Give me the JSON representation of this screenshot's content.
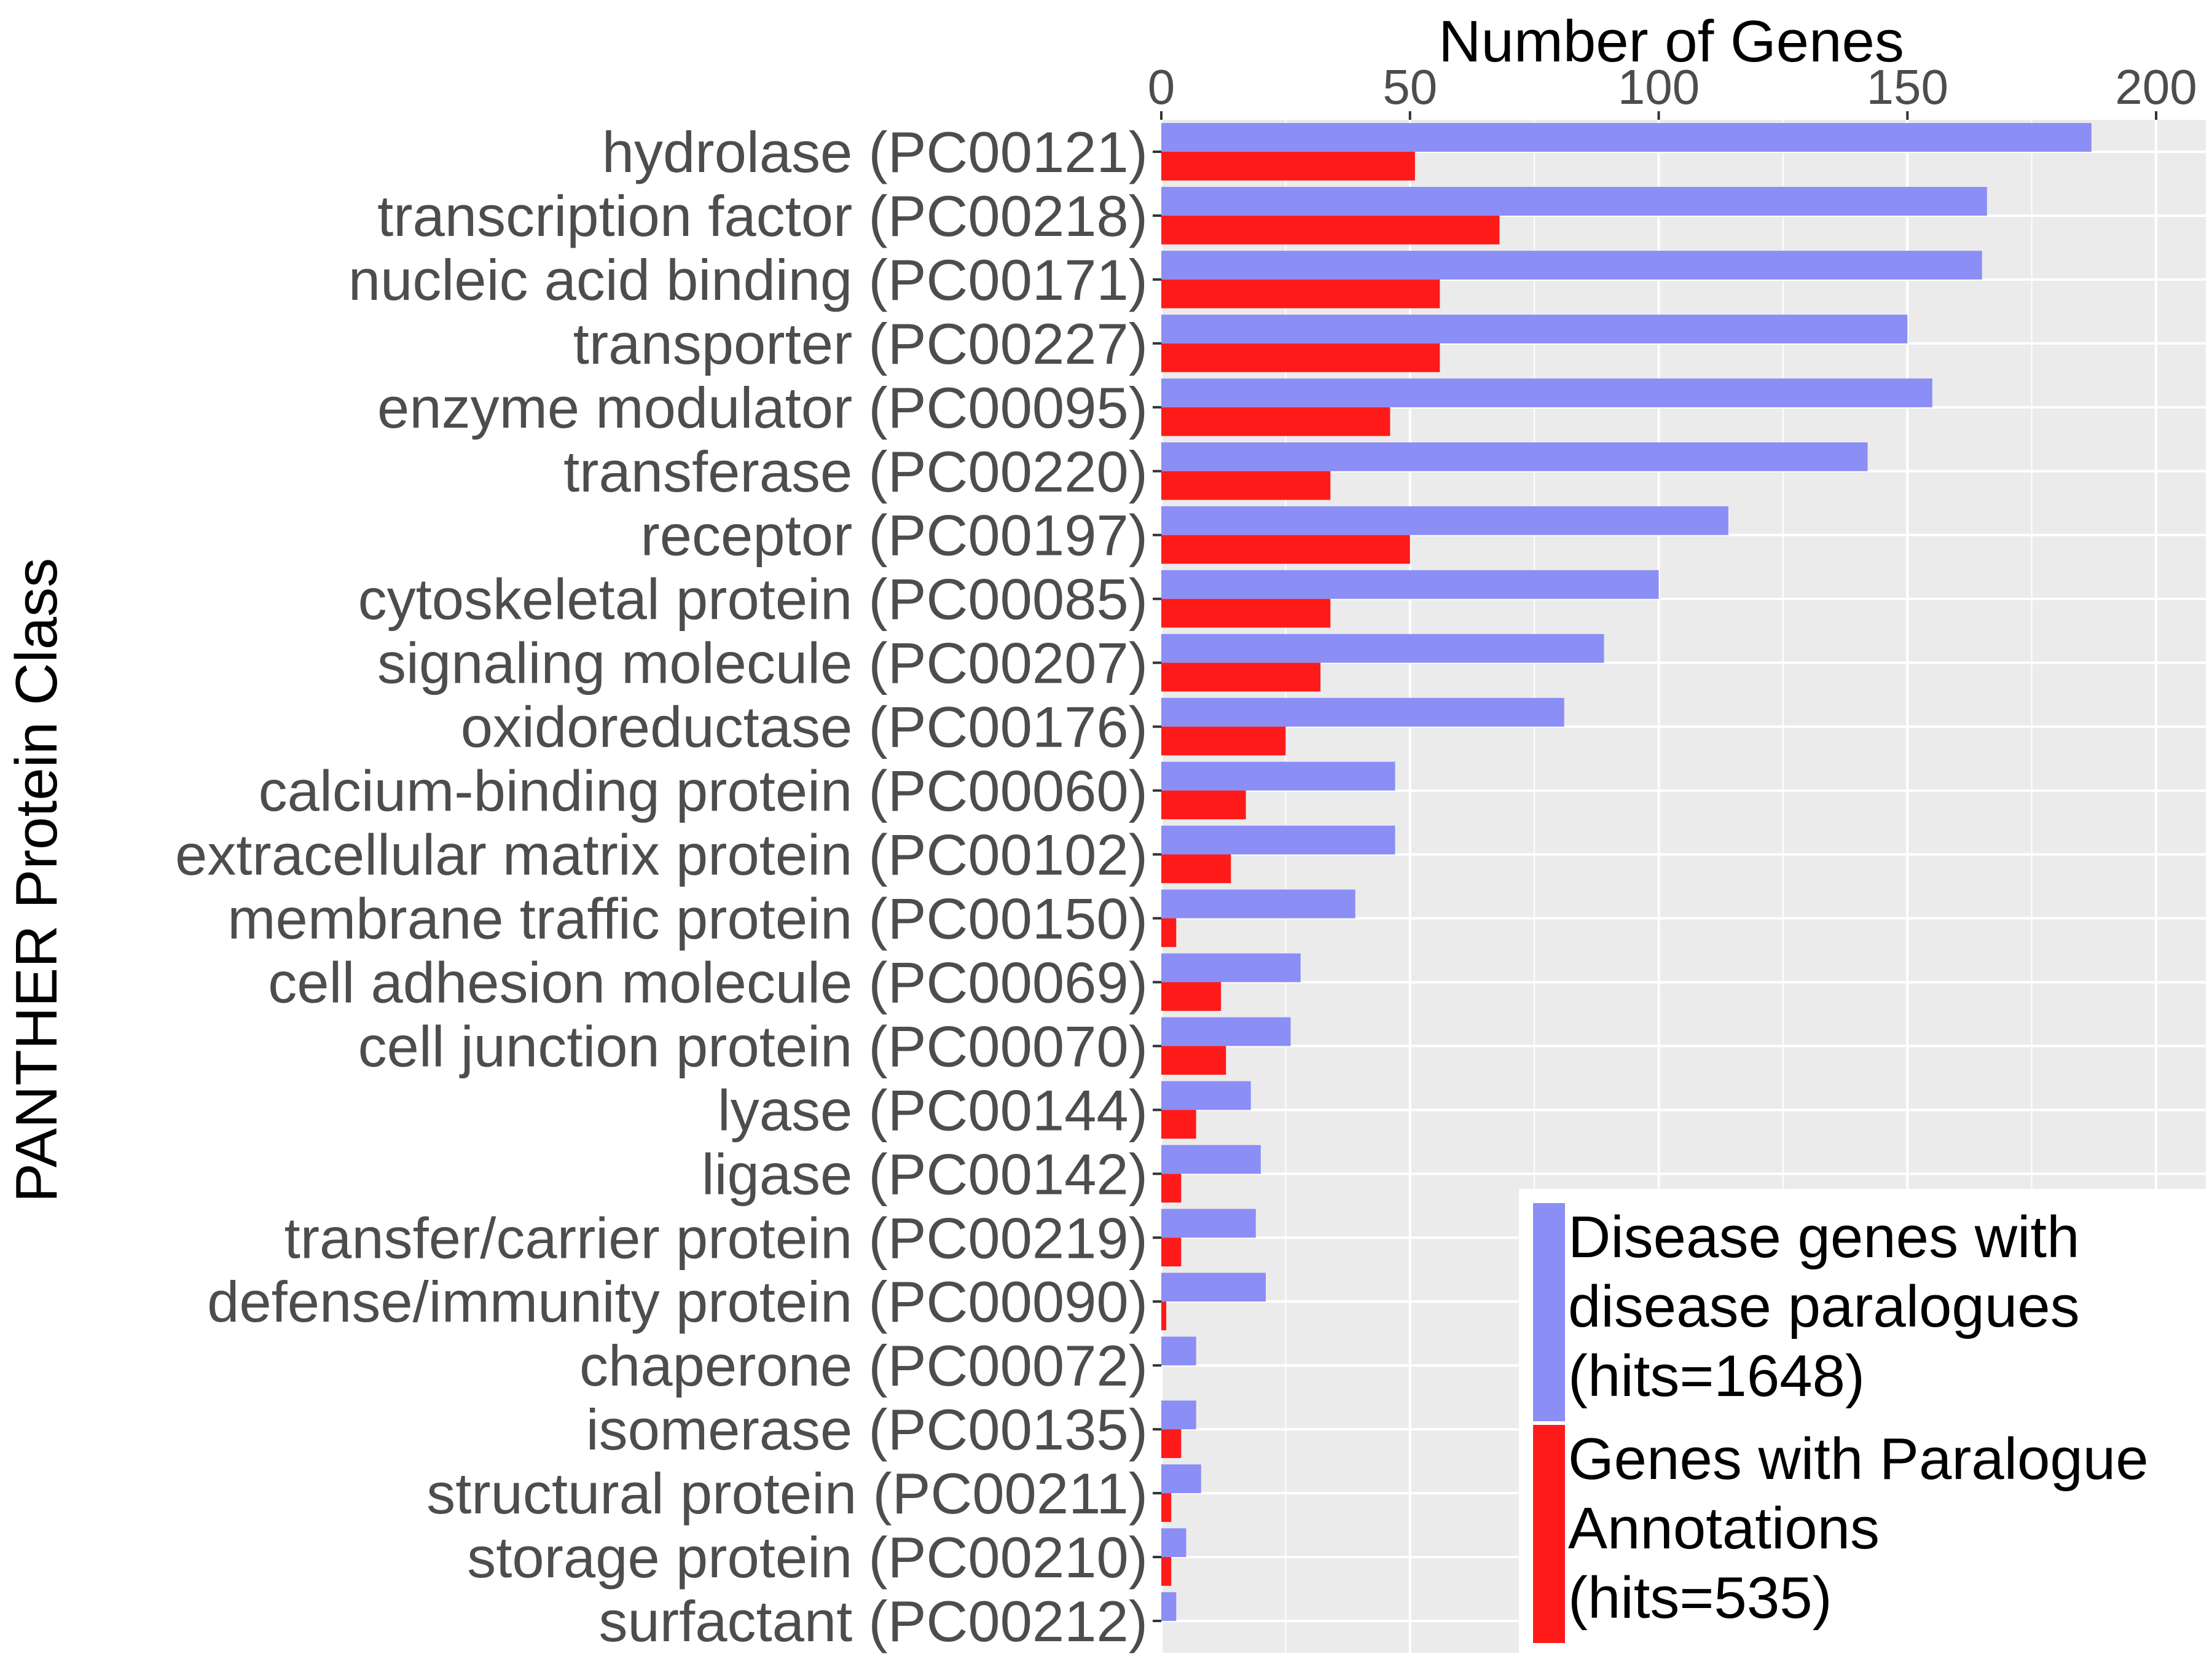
{
  "chart_data": {
    "type": "bar",
    "orientation": "horizontal",
    "xlabel": "Number of Genes",
    "ylabel": "PANTHER Protein Class",
    "xlim": [
      0,
      210
    ],
    "xticks": [
      0,
      50,
      100,
      150,
      200
    ],
    "grid": true,
    "legend_position": "bottom-right",
    "categories": [
      "hydrolase (PC00121)",
      "transcription factor (PC00218)",
      "nucleic acid binding (PC00171)",
      "transporter (PC00227)",
      "enzyme modulator (PC00095)",
      "transferase (PC00220)",
      "receptor (PC00197)",
      "cytoskeletal protein (PC00085)",
      "signaling molecule (PC00207)",
      "oxidoreductase (PC00176)",
      "calcium-binding protein (PC00060)",
      "extracellular matrix protein (PC00102)",
      "membrane traffic protein (PC00150)",
      "cell adhesion molecule (PC00069)",
      "cell junction protein (PC00070)",
      "lyase (PC00144)",
      "ligase (PC00142)",
      "transfer/carrier protein (PC00219)",
      "defense/immunity protein (PC00090)",
      "chaperone (PC00072)",
      "isomerase (PC00135)",
      "structural protein (PC00211)",
      "storage protein (PC00210)",
      "surfactant (PC00212)"
    ],
    "series": [
      {
        "name": "Disease genes with disease paralogues (hits=1648)",
        "legend_lines": [
          "Disease genes with",
          "disease paralogues",
          "(hits=1648)"
        ],
        "color": "#8b8ef5",
        "values": [
          187,
          166,
          165,
          150,
          155,
          142,
          114,
          100,
          89,
          81,
          47,
          47,
          39,
          28,
          26,
          18,
          20,
          19,
          21,
          7,
          7,
          8,
          5,
          3
        ]
      },
      {
        "name": "Genes with Paralogue Annotations (hits=535)",
        "legend_lines": [
          "Genes with Paralogue",
          "Annotations",
          "(hits=535)"
        ],
        "color": "#ff1a1a",
        "values": [
          51,
          68,
          56,
          56,
          46,
          34,
          50,
          34,
          32,
          25,
          17,
          14,
          3,
          12,
          13,
          7,
          4,
          4,
          1,
          0,
          4,
          2,
          2,
          0
        ]
      }
    ]
  }
}
